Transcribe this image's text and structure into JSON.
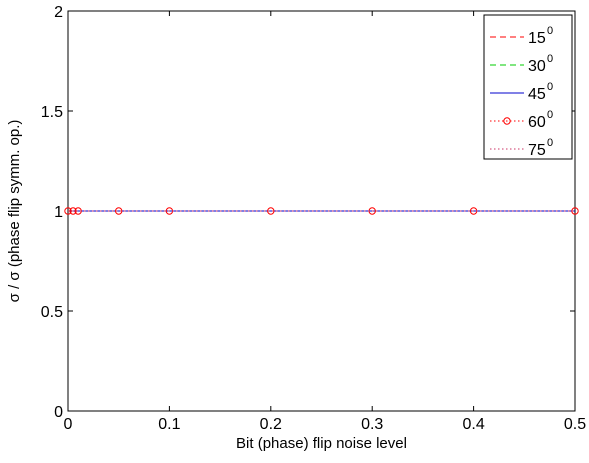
{
  "chart_data": {
    "type": "line",
    "title": "",
    "xlabel": "Bit (phase) flip noise level",
    "ylabel": "σ / σ (phase flip symm. op.)",
    "xlim": [
      0,
      0.5
    ],
    "ylim": [
      0,
      2
    ],
    "x_ticks": [
      "0",
      "0.1",
      "0.2",
      "0.3",
      "0.4",
      "0.5"
    ],
    "y_ticks": [
      "0",
      "0.5",
      "1",
      "1.5",
      "2"
    ],
    "x": [
      0,
      0.005,
      0.01,
      0.05,
      0.1,
      0.2,
      0.3,
      0.4,
      0.5
    ],
    "grid": false,
    "legend_position": "top-right",
    "series": [
      {
        "name": "15",
        "name_sup": "0",
        "values": [
          1,
          1,
          1,
          1,
          1,
          1,
          1,
          1,
          1
        ],
        "color": "#ff0000",
        "line": "dashed",
        "marker": "none"
      },
      {
        "name": "30",
        "name_sup": "0",
        "values": [
          1,
          1,
          1,
          1,
          1,
          1,
          1,
          1,
          1
        ],
        "color": "#00cc00",
        "line": "dashed",
        "marker": "none"
      },
      {
        "name": "45",
        "name_sup": "0",
        "values": [
          1,
          1,
          1,
          1,
          1,
          1,
          1,
          1,
          1
        ],
        "color": "#0000cc",
        "line": "solid",
        "marker": "none"
      },
      {
        "name": "60",
        "name_sup": "0",
        "values": [
          1,
          1,
          1,
          1,
          1,
          1,
          1,
          1,
          1
        ],
        "color": "#ff0000",
        "line": "dotted",
        "marker": "circle"
      },
      {
        "name": "75",
        "name_sup": "0",
        "values": [
          1,
          1,
          1,
          1,
          1,
          1,
          1,
          1,
          1
        ],
        "color": "#cc3366",
        "line": "dotted",
        "marker": "none"
      }
    ]
  }
}
